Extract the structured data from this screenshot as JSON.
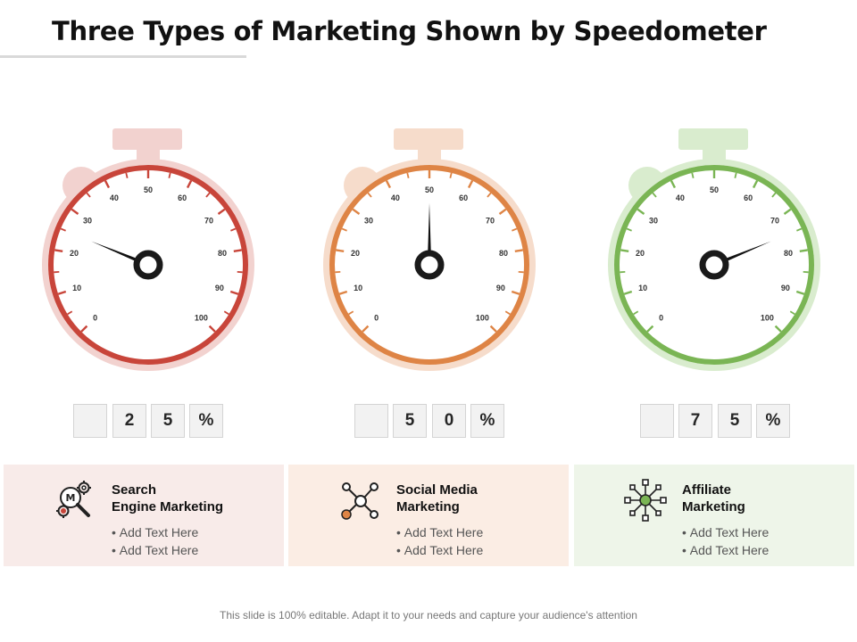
{
  "title": "Three Types of Marketing Shown by Speedometer",
  "footer": "This slide is 100% editable. Adapt it to your needs and capture your audience's attention",
  "chart_data": {
    "type": "gauge",
    "scale": {
      "min": 0,
      "max": 100,
      "tick_labels": [
        "0",
        "10",
        "20",
        "30",
        "40",
        "50",
        "60",
        "70",
        "80",
        "90",
        "100"
      ]
    },
    "gauges": [
      {
        "value": 25,
        "digits": [
          "",
          "2",
          "5",
          "%"
        ],
        "color": "#c8453a",
        "light_color": "#f2d2cf"
      },
      {
        "value": 50,
        "digits": [
          "",
          "5",
          "0",
          "%"
        ],
        "color": "#de8445",
        "light_color": "#f6dccb"
      },
      {
        "value": 75,
        "digits": [
          "",
          "7",
          "5",
          "%"
        ],
        "color": "#7ab554",
        "light_color": "#d9ecce"
      }
    ]
  },
  "cards": [
    {
      "heading_line1": "Search",
      "heading_line2": "Engine Marketing",
      "bullets": [
        "Add Text Here",
        "Add Text Here"
      ],
      "background": "#f8ebe9",
      "icon": "seo-magnifier-gears-icon"
    },
    {
      "heading_line1": "Social Media",
      "heading_line2": "Marketing",
      "bullets": [
        "Add Text Here",
        "Add Text Here"
      ],
      "background": "#fbede4",
      "icon": "network-nodes-icon"
    },
    {
      "heading_line1": "Affiliate",
      "heading_line2": "Marketing",
      "bullets": [
        "Add Text Here",
        "Add Text Here"
      ],
      "background": "#eef5e9",
      "icon": "affiliate-hub-icon"
    }
  ]
}
